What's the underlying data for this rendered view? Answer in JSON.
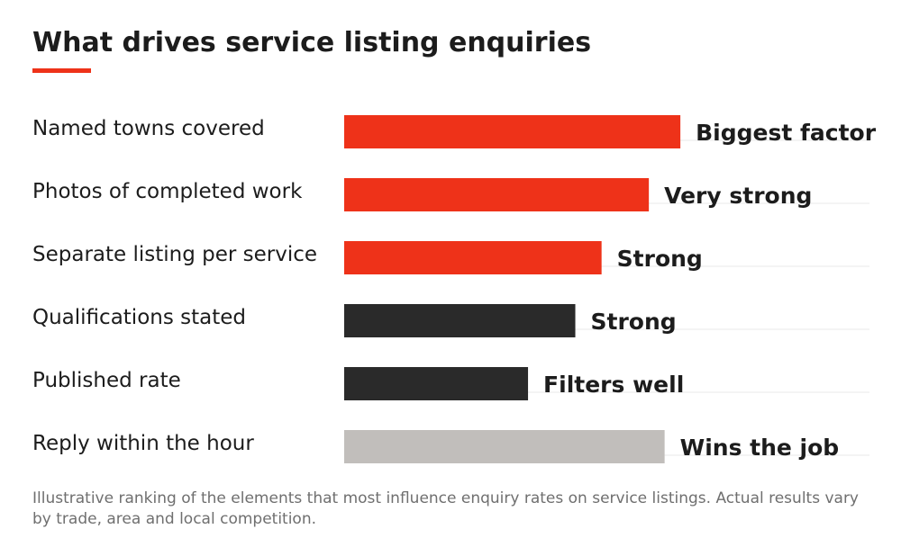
{
  "title": "What drives service listing enquiries",
  "note": "Illustrative ranking of the elements that most influence enquiry rates on service listings. Actual results vary by trade, area and local competition.",
  "colors": {
    "accent": "#ee3219",
    "dark": "#2a2a2a",
    "neutral": "#c1bebb",
    "gridline": "#e9e9e9"
  },
  "chart_data": {
    "type": "bar",
    "orientation": "horizontal",
    "title": "What drives service listing enquiries",
    "xlabel": "",
    "ylabel": "",
    "grid": false,
    "xlim": [
      0,
      100
    ],
    "categories": [
      "Named towns covered",
      "Photos of completed work",
      "Separate listing per service",
      "Qualifications stated",
      "Published rate",
      "Reply within the hour"
    ],
    "values": [
      64,
      58,
      49,
      44,
      35,
      61
    ],
    "data_labels": [
      "Biggest factor",
      "Very strong",
      "Strong",
      "Strong",
      "Filters well",
      "Wins the job"
    ],
    "bar_colors": [
      "#ee3219",
      "#ee3219",
      "#ee3219",
      "#2a2a2a",
      "#2a2a2a",
      "#c1bebb"
    ]
  }
}
